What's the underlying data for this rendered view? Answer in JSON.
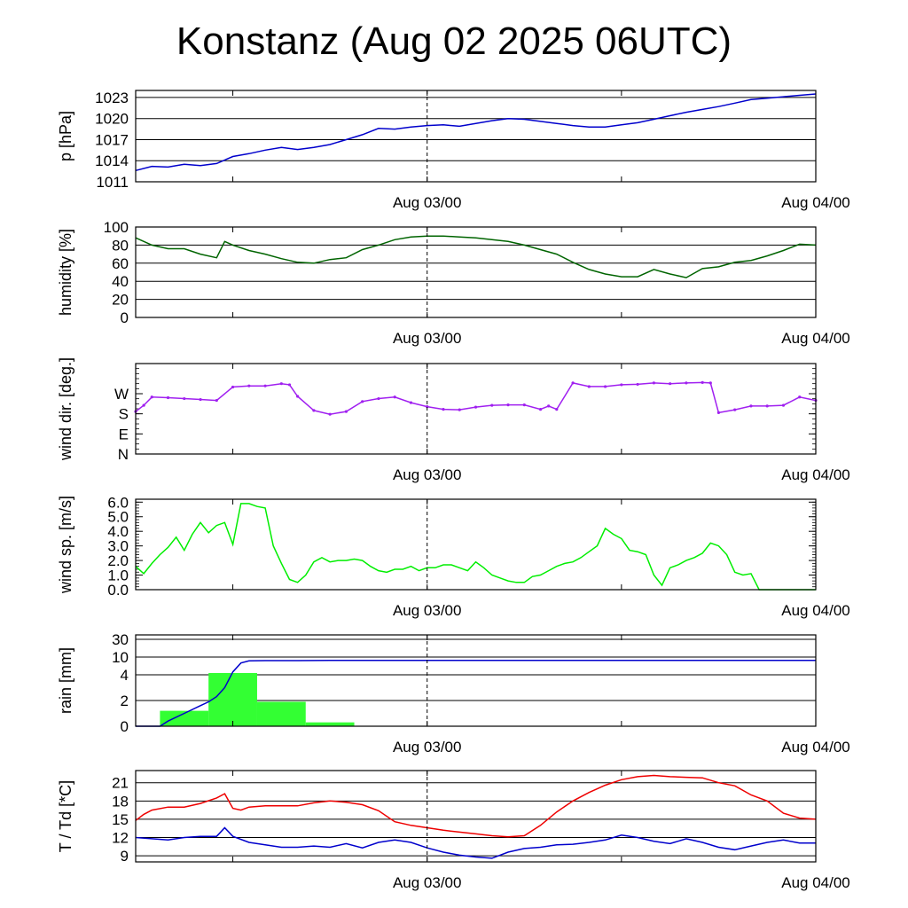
{
  "title": "Konstanz (Aug 02 2025 06UTC)",
  "x_axis": {
    "tick_labels": [
      "Aug 03/00",
      "Aug 04/00"
    ],
    "start": "Aug 02 06:00",
    "end": "Aug 04 00:00",
    "marker": "Aug 03/00"
  },
  "colors": {
    "pressure": "#0000cc",
    "humidity": "#006400",
    "wind_dir": "#a020f0",
    "wind_speed": "#00ee00",
    "rain_bars": "#33ff33",
    "rain_cum": "#0000cc",
    "temperature": "#ee0000",
    "dewpoint": "#0000cc"
  },
  "chart_data": [
    {
      "type": "line",
      "ylabel": "p [hPa]",
      "ylim": [
        1011,
        1024
      ],
      "yticks": [
        "1023",
        "1020",
        "1017",
        "1014",
        "1011"
      ],
      "grid": true,
      "series": [
        {
          "x": [
            0,
            1,
            2,
            3,
            4,
            5,
            6,
            7,
            8,
            9,
            10,
            11,
            12,
            13,
            14,
            15,
            16,
            17,
            18,
            19,
            20,
            21,
            22,
            23,
            24,
            25,
            26,
            27,
            28,
            29,
            30,
            31,
            32,
            33,
            34,
            35,
            36,
            37,
            38,
            39,
            40,
            41,
            42
          ],
          "values": [
            1012.6,
            1013.2,
            1013.1,
            1013.5,
            1013.3,
            1013.6,
            1014.6,
            1015.0,
            1015.5,
            1015.9,
            1015.6,
            1015.9,
            1016.3,
            1017.0,
            1017.7,
            1018.6,
            1018.5,
            1018.8,
            1019.0,
            1019.1,
            1018.9,
            1019.3,
            1019.7,
            1020.0,
            1019.9,
            1019.6,
            1019.3,
            1019.0,
            1018.8,
            1018.8,
            1019.1,
            1019.4,
            1019.9,
            1020.4,
            1020.9,
            1021.3,
            1021.7,
            1022.2,
            1022.7,
            1022.9,
            1023.1,
            1023.3,
            1023.5
          ]
        }
      ]
    },
    {
      "type": "line",
      "ylabel": "humidity [%]",
      "ylim": [
        0,
        100
      ],
      "yticks": [
        "100",
        "80",
        "60",
        "40",
        "20",
        "0"
      ],
      "grid": true,
      "series": [
        {
          "x": [
            0,
            1,
            2,
            3,
            4,
            5,
            5.5,
            6,
            7,
            8,
            9,
            10,
            11,
            12,
            13,
            14,
            15,
            16,
            17,
            18,
            19,
            20,
            21,
            22,
            23,
            24,
            25,
            26,
            27,
            28,
            29,
            30,
            31,
            32,
            33,
            34,
            35,
            36,
            37,
            38,
            39,
            40,
            41,
            42
          ],
          "values": [
            88,
            80,
            76,
            76,
            70,
            66,
            84,
            80,
            74,
            70,
            65,
            61,
            60,
            64,
            66,
            75,
            80,
            86,
            89,
            90,
            90,
            89,
            88,
            86,
            84,
            80,
            75,
            70,
            61,
            53,
            48,
            45,
            45,
            53,
            48,
            44,
            54,
            56,
            61,
            63,
            68,
            74,
            81,
            80
          ]
        }
      ]
    },
    {
      "type": "scatter",
      "ylabel": "wind dir. [deg.]",
      "ylim": [
        0,
        405
      ],
      "yticks": [
        "W",
        "S",
        "E",
        "N"
      ],
      "ytick_values": [
        270,
        180,
        90,
        0
      ],
      "grid": false,
      "series": [
        {
          "x": [
            0,
            0.5,
            1,
            2,
            3,
            4,
            5,
            6,
            7,
            8,
            9,
            9.5,
            10,
            11,
            12,
            13,
            14,
            15,
            16,
            17,
            18,
            19,
            20,
            21,
            22,
            23,
            24,
            25,
            25.5,
            26,
            27,
            28,
            29,
            30,
            31,
            32,
            33,
            34,
            35,
            35.5,
            36,
            37,
            38,
            39,
            40,
            41,
            42
          ],
          "values": [
            190,
            218,
            255,
            252,
            248,
            244,
            240,
            300,
            305,
            305,
            315,
            310,
            258,
            195,
            178,
            190,
            235,
            248,
            255,
            230,
            212,
            200,
            198,
            210,
            218,
            220,
            220,
            200,
            215,
            200,
            318,
            302,
            302,
            310,
            312,
            318,
            315,
            318,
            320,
            318,
            185,
            198,
            215,
            215,
            218,
            255,
            240
          ]
        }
      ]
    },
    {
      "type": "line",
      "ylabel": "wind sp. [m/s]",
      "ylim": [
        0,
        6.2
      ],
      "yticks": [
        "6.0",
        "5.0",
        "4.0",
        "3.0",
        "2.0",
        "1.0",
        "0.0"
      ],
      "grid": false,
      "series": [
        {
          "x": [
            0,
            0.5,
            1,
            1.5,
            2,
            2.5,
            3,
            3.5,
            4,
            4.5,
            5,
            5.5,
            6,
            6.5,
            7,
            7.5,
            8,
            8.5,
            9,
            9.5,
            10,
            10.5,
            11,
            11.5,
            12,
            12.5,
            13,
            13.5,
            14,
            14.5,
            15,
            15.5,
            16,
            16.5,
            17,
            17.5,
            18,
            18.5,
            19,
            19.5,
            20,
            20.5,
            21,
            21.5,
            22,
            22.5,
            23,
            23.5,
            24,
            24.5,
            25,
            25.5,
            26,
            26.5,
            27,
            27.5,
            28,
            28.5,
            29,
            29.5,
            30,
            30.5,
            31,
            31.5,
            32,
            32.5,
            33,
            33.5,
            34,
            34.5,
            35,
            35.5,
            36,
            36.5,
            37,
            37.5,
            38,
            38.5,
            39,
            39.5,
            40,
            40.5,
            41,
            41.5,
            42
          ],
          "values": [
            1.6,
            1.1,
            1.8,
            2.4,
            2.9,
            3.6,
            2.7,
            3.8,
            4.6,
            3.9,
            4.4,
            4.6,
            3.1,
            5.9,
            5.9,
            5.7,
            5.6,
            3.0,
            1.8,
            0.7,
            0.5,
            1.0,
            1.9,
            2.2,
            1.9,
            2.0,
            2.0,
            2.1,
            2.0,
            1.6,
            1.3,
            1.2,
            1.4,
            1.4,
            1.6,
            1.3,
            1.5,
            1.5,
            1.7,
            1.7,
            1.5,
            1.3,
            1.9,
            1.5,
            1.0,
            0.8,
            0.6,
            0.5,
            0.5,
            0.9,
            1.0,
            1.3,
            1.6,
            1.8,
            1.9,
            2.2,
            2.6,
            3.0,
            4.2,
            3.8,
            3.5,
            2.7,
            2.6,
            2.4,
            1.0,
            0.3,
            1.5,
            1.7,
            2.0,
            2.2,
            2.5,
            3.2,
            3.0,
            2.4,
            1.2,
            1.0,
            1.1,
            0,
            0,
            0,
            0,
            0,
            0,
            0,
            0
          ]
        }
      ]
    },
    {
      "type": "bar",
      "ylabel": "rain [mm]",
      "yticks": [
        "30",
        "10",
        "4",
        "2",
        "0"
      ],
      "ytick_values": [
        30,
        10,
        4,
        2,
        0
      ],
      "grid": true,
      "bars": {
        "x_start": [
          1.5,
          4.5,
          7.5,
          10.5
        ],
        "x_end": [
          4.5,
          7.5,
          10.5,
          13.5
        ],
        "values": [
          1.2,
          4.6,
          1.9,
          0.3
        ]
      },
      "series": [
        {
          "name": "",
          "x": [
            0,
            1,
            1.5,
            2,
            3,
            4,
            4.5,
            5,
            5.5,
            6,
            6.5,
            7,
            8,
            10,
            12,
            14,
            16,
            20,
            30,
            42
          ],
          "values": [
            0,
            0,
            0,
            0.4,
            1.0,
            1.6,
            1.9,
            2.3,
            3.0,
            5.0,
            8.0,
            8.7,
            8.8,
            8.8,
            8.9,
            8.9,
            8.9,
            8.9,
            8.9,
            8.9
          ]
        }
      ]
    },
    {
      "type": "line",
      "ylabel": "T / Td [*C]",
      "ylim": [
        8,
        23
      ],
      "yticks": [
        "21",
        "18",
        "15",
        "12",
        "9"
      ],
      "grid": true,
      "series": [
        {
          "name": "",
          "x": [
            0,
            0.5,
            1,
            2,
            3,
            4,
            5,
            5.5,
            6,
            6.5,
            7,
            8,
            9,
            10,
            11,
            12,
            13,
            14,
            15,
            16,
            17,
            18,
            19,
            20,
            21,
            22,
            23,
            24,
            25,
            26,
            27,
            28,
            29,
            30,
            31,
            32,
            33,
            34,
            35,
            36,
            37,
            38,
            39,
            40,
            41,
            42
          ],
          "values": [
            14.8,
            15.8,
            16.5,
            17.0,
            17.0,
            17.6,
            18.5,
            19.2,
            16.8,
            16.5,
            17.0,
            17.2,
            17.2,
            17.2,
            17.7,
            18.0,
            17.8,
            17.4,
            16.4,
            14.6,
            14.0,
            13.6,
            13.2,
            12.9,
            12.6,
            12.3,
            12.1,
            12.3,
            14.0,
            16.2,
            18.0,
            19.4,
            20.6,
            21.5,
            22.0,
            22.2,
            22.0,
            21.9,
            21.8,
            21.0,
            20.5,
            19.0,
            18.0,
            16.0,
            15.2,
            15.0
          ]
        },
        {
          "name": "",
          "x": [
            0,
            1,
            2,
            3,
            4,
            5,
            5.5,
            6,
            7,
            8,
            9,
            10,
            11,
            12,
            13,
            14,
            15,
            16,
            17,
            18,
            19,
            20,
            21,
            22,
            23,
            24,
            25,
            26,
            27,
            28,
            29,
            30,
            31,
            32,
            33,
            34,
            35,
            36,
            37,
            38,
            39,
            40,
            41,
            42
          ],
          "values": [
            12.0,
            11.8,
            11.6,
            12.0,
            12.2,
            12.2,
            13.6,
            12.2,
            11.2,
            10.8,
            10.4,
            10.4,
            10.6,
            10.4,
            11.0,
            10.3,
            11.2,
            11.6,
            11.2,
            10.3,
            9.6,
            9.1,
            8.8,
            8.6,
            9.6,
            10.2,
            10.4,
            10.8,
            10.9,
            11.2,
            11.6,
            12.4,
            12.0,
            11.4,
            11.0,
            11.8,
            11.2,
            10.4,
            10.0,
            10.6,
            11.2,
            11.6,
            11.1,
            11.1
          ]
        }
      ]
    }
  ]
}
